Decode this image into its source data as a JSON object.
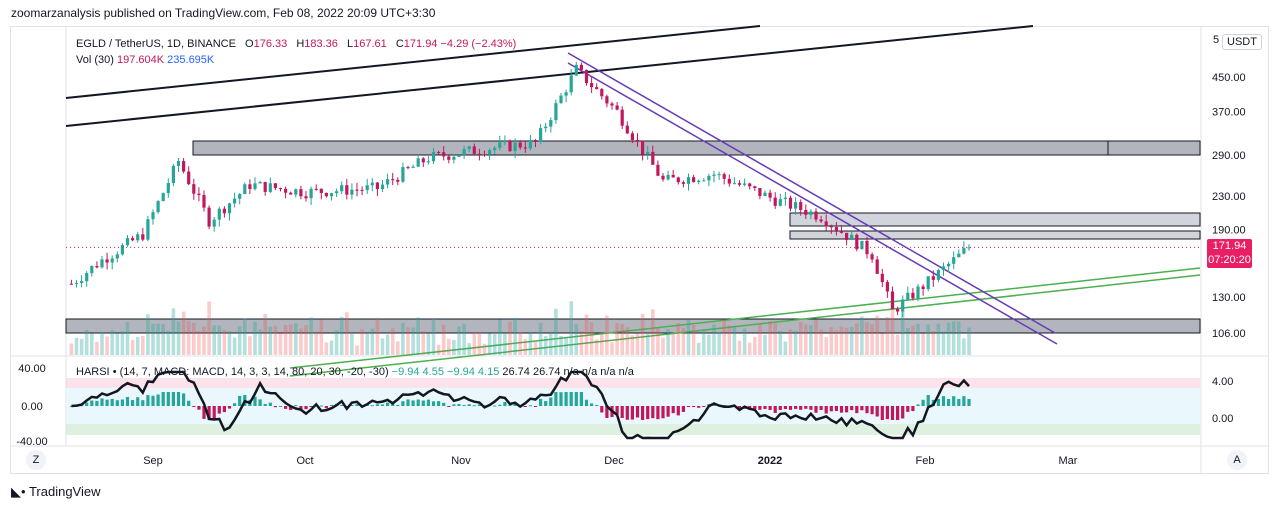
{
  "header": {
    "publisher_text": "zoomarzanalysis published on TradingView.com, Feb 08, 2022 20:09 UTC+3:30"
  },
  "legend": {
    "symbol": "EGLD / TetherUS, 1D, BINANCE",
    "open_label": "O",
    "open": "176.33",
    "high_label": "H",
    "high": "183.36",
    "low_label": "L",
    "low": "167.61",
    "close_label": "C",
    "close": "171.94",
    "change": "−4.29 (−2.43%)",
    "vol_label": "Vol (30)",
    "vol_value": "197.604K",
    "vol_ma": "235.695K"
  },
  "indicator_legend": {
    "name": "HARSI",
    "params": "• (14, 7, MACD: MACD, 14, 3, 3, 14, 80, 20, 30, -20, -30)",
    "values_green": "−9.94  4.55  −9.94  4.15",
    "values_dark": "26.74  26.74  n/a  n/a  n/a  n/a"
  },
  "price_axis": {
    "currency_button": "USDT",
    "top_cut_label": "5",
    "current_price": "171.94",
    "countdown": "07:20:20"
  },
  "time_axis_corner": {
    "left_button": "Z",
    "right_button": "A"
  },
  "footer": {
    "logo_text": "TradingView"
  },
  "colors": {
    "up": "#26a69a",
    "down": "#c2185b",
    "trendline_purple": "#673ab7",
    "trendline_green": "#4caf50",
    "zone_fill": "#b2b5be",
    "price_tag": "#e91e63"
  },
  "chart_data": {
    "type": "candlestick",
    "symbol": "EGLD / TetherUS",
    "interval": "1D",
    "y_scale": "log",
    "y_ticks": [
      106,
      130,
      190,
      230,
      290,
      370,
      450
    ],
    "y_tick_labels": [
      "106.00",
      "130.00",
      "190.00",
      "230.00",
      "290.00",
      "370.00",
      "450.00"
    ],
    "x_ticks": [
      "Sep",
      "Oct",
      "Nov",
      "Dec",
      "2022",
      "Feb",
      "Mar"
    ],
    "last_close": 171.94,
    "approx_path": [
      {
        "t": "Aug 16",
        "close": 140
      },
      {
        "t": "Aug 22",
        "close": 160
      },
      {
        "t": "Aug 30",
        "close": 185
      },
      {
        "t": "Sep 6",
        "close": 280
      },
      {
        "t": "Sep 12",
        "close": 200
      },
      {
        "t": "Sep 20",
        "close": 245
      },
      {
        "t": "Oct 1",
        "close": 235
      },
      {
        "t": "Oct 15",
        "close": 240
      },
      {
        "t": "Oct 25",
        "close": 285
      },
      {
        "t": "Nov 5",
        "close": 300
      },
      {
        "t": "Nov 15",
        "close": 310
      },
      {
        "t": "Nov 23",
        "close": 470
      },
      {
        "t": "Dec 1",
        "close": 370
      },
      {
        "t": "Dec 10",
        "close": 250
      },
      {
        "t": "Dec 20",
        "close": 260
      },
      {
        "t": "Jan 1",
        "close": 225
      },
      {
        "t": "Jan 10",
        "close": 205
      },
      {
        "t": "Jan 20",
        "close": 165
      },
      {
        "t": "Jan 24",
        "close": 120
      },
      {
        "t": "Feb 1",
        "close": 145
      },
      {
        "t": "Feb 8",
        "close": 171.94
      }
    ],
    "oscillator": {
      "name": "HARSI",
      "y_ticks_left": [
        "40.00",
        "0.00",
        "-40.00"
      ],
      "y_ticks_right": [
        "4.00",
        "0.00"
      ]
    }
  }
}
